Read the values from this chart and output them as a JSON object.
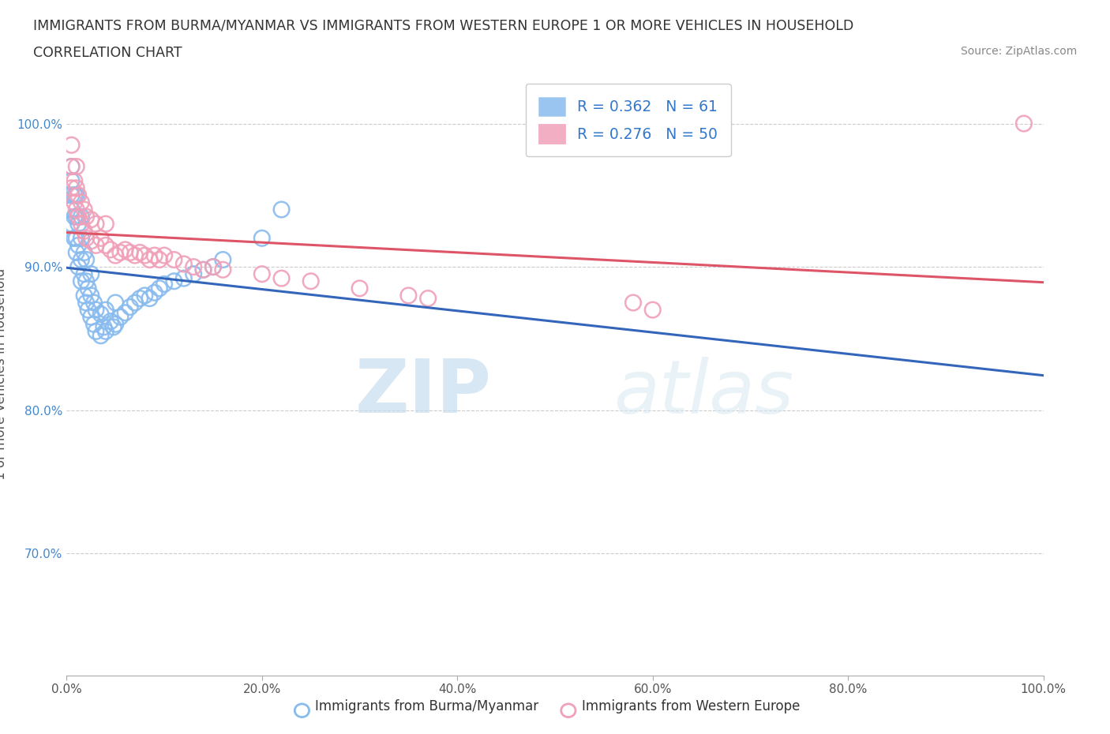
{
  "title_line1": "IMMIGRANTS FROM BURMA/MYANMAR VS IMMIGRANTS FROM WESTERN EUROPE 1 OR MORE VEHICLES IN HOUSEHOLD",
  "title_line2": "CORRELATION CHART",
  "source_text": "Source: ZipAtlas.com",
  "ylabel": "1 or more Vehicles in Household",
  "xmin": 0.0,
  "xmax": 1.0,
  "ymin": 0.615,
  "ymax": 1.035,
  "xtick_labels": [
    "0.0%",
    "20.0%",
    "40.0%",
    "60.0%",
    "80.0%",
    "100.0%"
  ],
  "xtick_vals": [
    0.0,
    0.2,
    0.4,
    0.6,
    0.8,
    1.0
  ],
  "ytick_labels": [
    "70.0%",
    "80.0%",
    "90.0%",
    "100.0%"
  ],
  "ytick_vals": [
    0.7,
    0.8,
    0.9,
    1.0
  ],
  "grid_color": "#cccccc",
  "blue_color": "#88bbee",
  "pink_color": "#f0a0b8",
  "trendline_blue": "#3366bb",
  "trendline_pink": "#dd5566",
  "legend_blue_label": "Immigrants from Burma/Myanmar",
  "legend_pink_label": "Immigrants from Western Europe",
  "R_blue": 0.362,
  "N_blue": 61,
  "R_pink": 0.276,
  "N_pink": 50,
  "watermark_zip": "ZIP",
  "watermark_atlas": "atlas",
  "blue_x": [
    0.005,
    0.005,
    0.005,
    0.005,
    0.005,
    0.008,
    0.008,
    0.008,
    0.01,
    0.01,
    0.01,
    0.01,
    0.012,
    0.012,
    0.012,
    0.015,
    0.015,
    0.015,
    0.015,
    0.018,
    0.018,
    0.018,
    0.02,
    0.02,
    0.02,
    0.022,
    0.022,
    0.025,
    0.025,
    0.025,
    0.028,
    0.028,
    0.03,
    0.03,
    0.035,
    0.035,
    0.038,
    0.04,
    0.04,
    0.045,
    0.048,
    0.05,
    0.05,
    0.055,
    0.06,
    0.065,
    0.07,
    0.075,
    0.08,
    0.085,
    0.09,
    0.095,
    0.1,
    0.11,
    0.12,
    0.13,
    0.14,
    0.15,
    0.16,
    0.2,
    0.22
  ],
  "blue_y": [
    0.93,
    0.94,
    0.95,
    0.96,
    0.97,
    0.92,
    0.935,
    0.95,
    0.91,
    0.92,
    0.935,
    0.95,
    0.9,
    0.915,
    0.93,
    0.89,
    0.905,
    0.92,
    0.935,
    0.88,
    0.895,
    0.91,
    0.875,
    0.89,
    0.905,
    0.87,
    0.885,
    0.865,
    0.88,
    0.895,
    0.86,
    0.875,
    0.855,
    0.87,
    0.852,
    0.867,
    0.858,
    0.855,
    0.87,
    0.862,
    0.858,
    0.86,
    0.875,
    0.865,
    0.868,
    0.872,
    0.875,
    0.878,
    0.88,
    0.878,
    0.882,
    0.885,
    0.888,
    0.89,
    0.892,
    0.895,
    0.898,
    0.9,
    0.905,
    0.92,
    0.94
  ],
  "pink_x": [
    0.005,
    0.005,
    0.005,
    0.008,
    0.008,
    0.01,
    0.01,
    0.01,
    0.012,
    0.012,
    0.015,
    0.015,
    0.018,
    0.018,
    0.02,
    0.02,
    0.025,
    0.025,
    0.03,
    0.03,
    0.035,
    0.04,
    0.04,
    0.045,
    0.05,
    0.055,
    0.06,
    0.065,
    0.07,
    0.075,
    0.08,
    0.085,
    0.09,
    0.095,
    0.1,
    0.11,
    0.12,
    0.13,
    0.14,
    0.15,
    0.16,
    0.2,
    0.22,
    0.25,
    0.3,
    0.35,
    0.37,
    0.58,
    0.6,
    0.98
  ],
  "pink_y": [
    0.955,
    0.97,
    0.985,
    0.945,
    0.96,
    0.94,
    0.955,
    0.97,
    0.935,
    0.95,
    0.93,
    0.945,
    0.925,
    0.94,
    0.92,
    0.935,
    0.918,
    0.933,
    0.915,
    0.93,
    0.92,
    0.915,
    0.93,
    0.912,
    0.908,
    0.91,
    0.912,
    0.91,
    0.908,
    0.91,
    0.908,
    0.905,
    0.908,
    0.905,
    0.908,
    0.905,
    0.902,
    0.9,
    0.898,
    0.9,
    0.898,
    0.895,
    0.892,
    0.89,
    0.885,
    0.88,
    0.878,
    0.875,
    0.87,
    1.0
  ]
}
